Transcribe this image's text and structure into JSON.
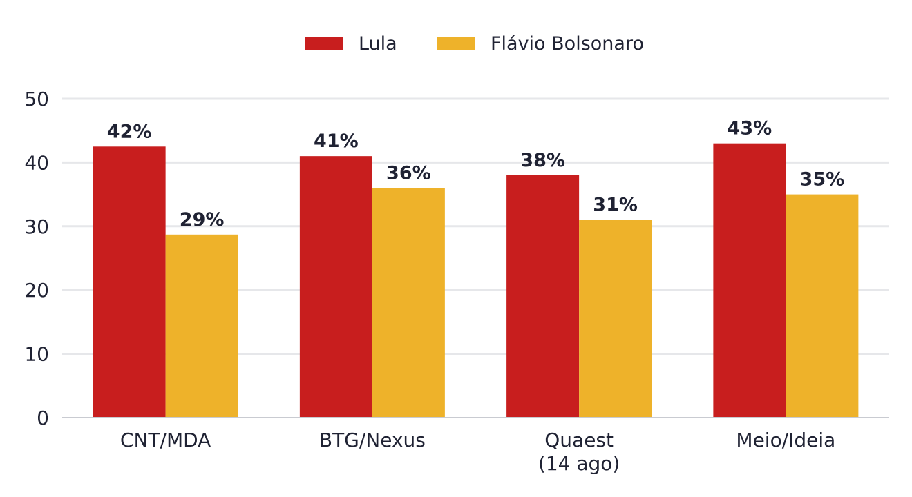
{
  "chart_data": {
    "type": "bar",
    "categories": [
      [
        "CNT/MDA"
      ],
      [
        "BTG/Nexus"
      ],
      [
        "Quaest",
        "(14 ago)"
      ],
      [
        "Meio/Ideia"
      ]
    ],
    "series": [
      {
        "name": "Lula",
        "color": "#c81e1e",
        "values": [
          42.5,
          41,
          38,
          43
        ],
        "labels": [
          "42%",
          "41%",
          "38%",
          "43%"
        ]
      },
      {
        "name": "Flávio Bolsonaro",
        "color": "#eeb22a",
        "values": [
          28.7,
          36,
          31,
          35
        ],
        "labels": [
          "29%",
          "36%",
          "31%",
          "35%"
        ]
      }
    ],
    "ylim": [
      0,
      50
    ],
    "yticks": [
      0,
      10,
      20,
      30,
      40,
      50
    ],
    "grid": true,
    "legend": "top-center",
    "gridColor": "#e6e7ea",
    "axisColor": "#c9cbd1"
  }
}
